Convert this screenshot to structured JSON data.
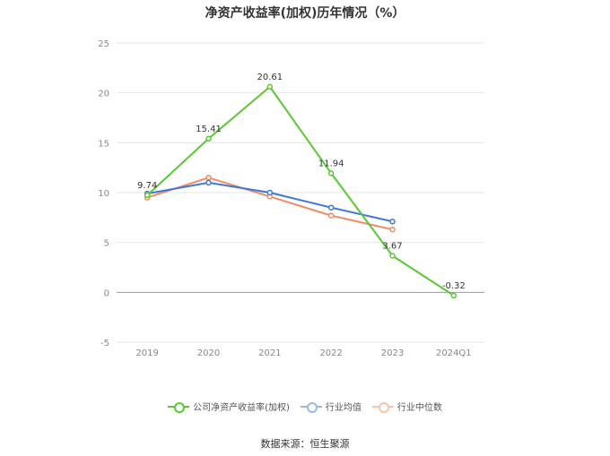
{
  "title": "净资产收益率(加权)历年情况（%）",
  "source": "数据来源：恒生聚源",
  "colors": {
    "company": "#5ac832",
    "avg": "#3c78dc",
    "median": "#f08c64",
    "grid": "#e6e6e6",
    "axis": "#999999"
  },
  "chart_data": {
    "type": "line",
    "categories": [
      "2019",
      "2020",
      "2021",
      "2022",
      "2023",
      "2024Q1"
    ],
    "ylim": [
      -5,
      25
    ],
    "yticks": [
      -5,
      0,
      5,
      10,
      15,
      20,
      25
    ],
    "grid": true,
    "legend_position": "bottom",
    "series": [
      {
        "name": "公司净资产收益率(加权)",
        "values": [
          9.74,
          15.41,
          20.61,
          11.94,
          3.67,
          -0.32
        ],
        "labels": [
          "9.74",
          "15.41",
          "20.61",
          "11.94",
          "3.67",
          "-0.32"
        ]
      },
      {
        "name": "行业均值",
        "values": [
          9.9,
          11.0,
          10.0,
          8.5,
          7.1,
          null
        ]
      },
      {
        "name": "行业中位数",
        "values": [
          9.5,
          11.5,
          9.6,
          7.7,
          6.3,
          null
        ]
      }
    ]
  }
}
